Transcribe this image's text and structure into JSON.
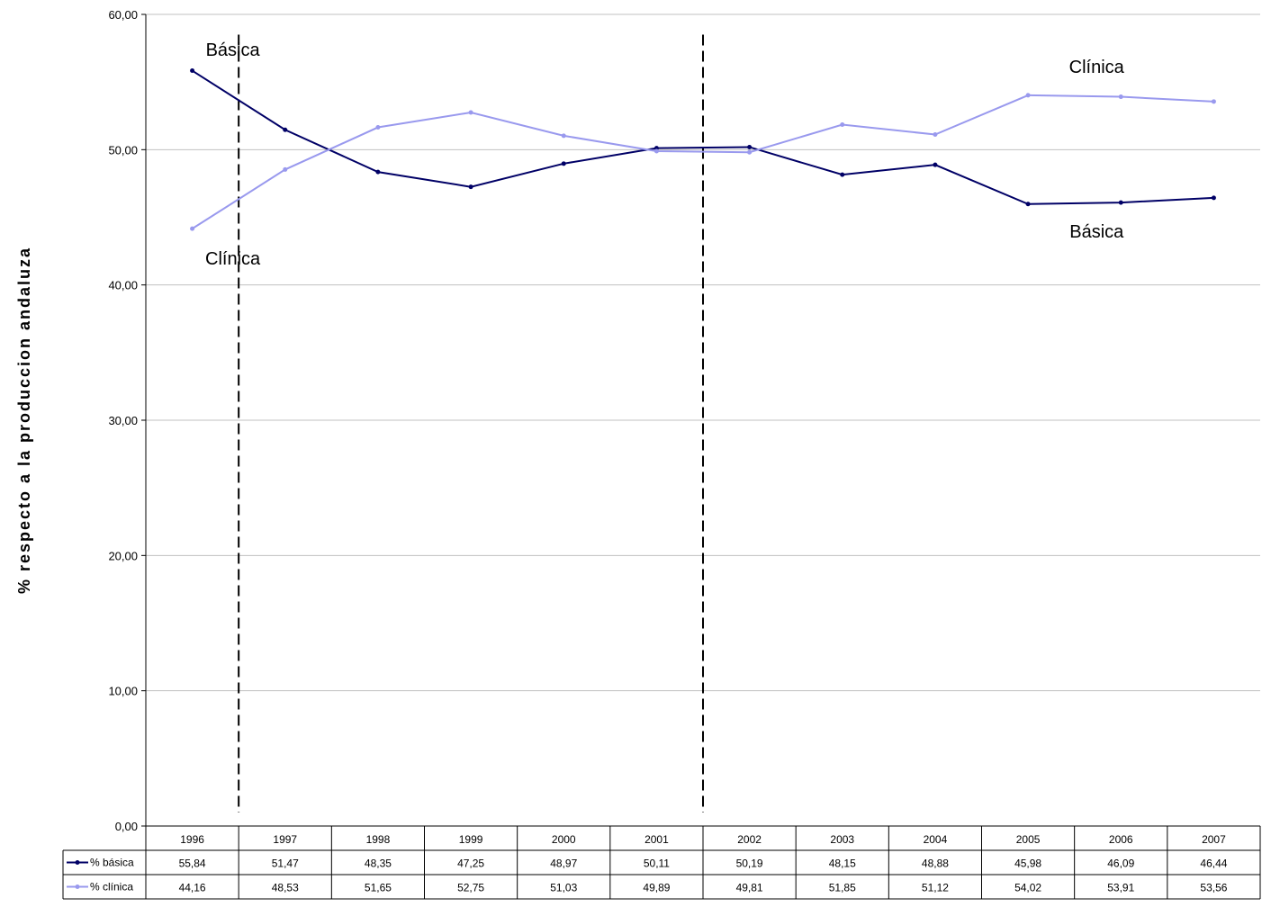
{
  "chart_data": {
    "type": "line",
    "title": "",
    "xlabel": "",
    "ylabel": "% respecto a la produccion andaluza",
    "categories": [
      "1996",
      "1997",
      "1998",
      "1999",
      "2000",
      "2001",
      "2002",
      "2003",
      "2004",
      "2005",
      "2006",
      "2007"
    ],
    "ylim": [
      0,
      60
    ],
    "yticks": [
      "0,00",
      "10,00",
      "20,00",
      "30,00",
      "40,00",
      "50,00",
      "60,00"
    ],
    "grid": true,
    "series": [
      {
        "name": "% básica",
        "color": "#000066",
        "values": [
          55.84,
          51.47,
          48.35,
          47.25,
          48.97,
          50.11,
          50.19,
          48.15,
          48.88,
          45.98,
          46.09,
          46.44
        ],
        "labels": [
          "55,84",
          "51,47",
          "48,35",
          "47,25",
          "48,97",
          "50,11",
          "50,19",
          "48,15",
          "48,88",
          "45,98",
          "46,09",
          "46,44"
        ]
      },
      {
        "name": "% clínica",
        "color": "#9999ee",
        "values": [
          44.16,
          48.53,
          51.65,
          52.75,
          51.03,
          49.89,
          49.81,
          51.85,
          51.12,
          54.02,
          53.91,
          53.56
        ],
        "labels": [
          "44,16",
          "48,53",
          "51,65",
          "52,75",
          "51,03",
          "49,89",
          "49,81",
          "51,85",
          "51,12",
          "54,02",
          "53,91",
          "53,56"
        ]
      }
    ],
    "annotations": [
      {
        "text": "Básica",
        "near_year": "1996",
        "position": "above"
      },
      {
        "text": "Clínica",
        "near_year": "1996",
        "position": "below"
      },
      {
        "text": "Clínica",
        "near_year": "2006",
        "position": "above"
      },
      {
        "text": "Básica",
        "near_year": "2006",
        "position": "below"
      }
    ],
    "reference_lines": [
      {
        "between": [
          "1996",
          "1997"
        ],
        "style": "dashed"
      },
      {
        "between": [
          "2001",
          "2002"
        ],
        "style": "dashed"
      }
    ],
    "data_table": true
  }
}
